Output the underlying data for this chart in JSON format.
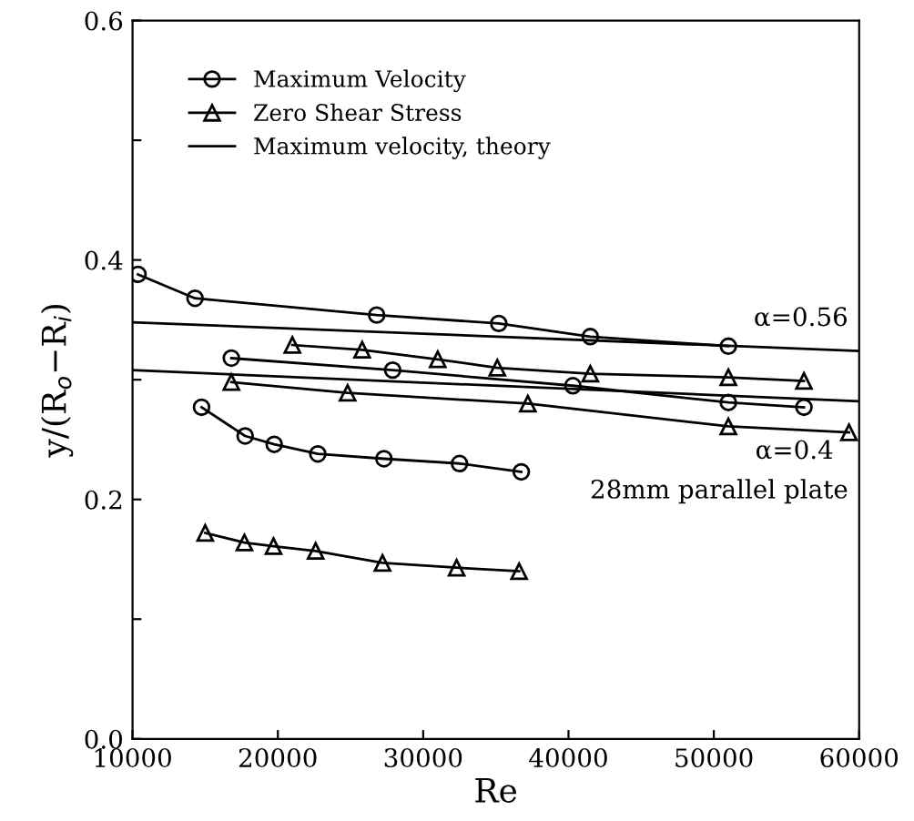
{
  "chart_data": {
    "type": "line",
    "xlabel": "Re",
    "ylabel": "y/(R$_{o}$−R$_{i}$)",
    "xlim": [
      10000,
      60000
    ],
    "ylim": [
      0,
      0.6
    ],
    "xticks": [
      10000,
      20000,
      30000,
      40000,
      50000,
      60000
    ],
    "yticks": [
      {
        "value": 0,
        "label": "0.0"
      },
      {
        "value": 0.1,
        "label": null
      },
      0.2,
      {
        "value": 0.3,
        "label": null
      },
      0.4,
      {
        "value": 0.5,
        "label": null
      },
      0.6
    ],
    "grid": false,
    "legend": "top left",
    "line_style": "solid",
    "series": [
      {
        "name": "Maximum Velocity",
        "marker": "circle",
        "color": "#000000",
        "x": [
          10375,
          14300,
          26800,
          35200,
          41500,
          51000
        ],
        "values": [
          0.388,
          0.368,
          0.354,
          0.347,
          0.336,
          0.328
        ]
      },
      {
        "name": "Zero Shear Stress",
        "marker": "triangle",
        "color": "#000000",
        "x": [
          21000,
          25800,
          31000,
          35100,
          41500,
          51000,
          56200
        ],
        "values": [
          0.329,
          0.325,
          0.317,
          0.31,
          0.305,
          0.302,
          0.299
        ]
      },
      {
        "name": "Maximum velocity, theory",
        "marker": "none",
        "color": "#000000",
        "x": [
          10000,
          60000
        ],
        "values": [
          0.348,
          0.324
        ]
      },
      {
        "marker": "none",
        "color": "#000000",
        "x": [
          10000,
          60000
        ],
        "values": [
          0.308,
          0.282
        ]
      },
      {
        "marker": "circle",
        "color": "#000000",
        "x": [
          16800,
          27900,
          40300,
          51000,
          56200
        ],
        "values": [
          0.318,
          0.308,
          0.295,
          0.281,
          0.277
        ]
      },
      {
        "marker": "triangle",
        "color": "#000000",
        "x": [
          16800,
          24800,
          37200,
          51000,
          59300
        ],
        "values": [
          0.298,
          0.289,
          0.28,
          0.261,
          0.256
        ]
      },
      {
        "marker": "circle",
        "color": "#000000",
        "x": [
          14750,
          17750,
          19750,
          22750,
          27300,
          32500,
          36750
        ],
        "values": [
          0.277,
          0.253,
          0.246,
          0.238,
          0.234,
          0.23,
          0.223
        ]
      },
      {
        "marker": "triangle",
        "color": "#000000",
        "x": [
          15000,
          17700,
          19700,
          22600,
          27200,
          32300,
          36600
        ],
        "values": [
          0.172,
          0.164,
          0.161,
          0.157,
          0.147,
          0.143,
          0.14
        ]
      }
    ],
    "annotations": [
      "α=0.56",
      "α=0.4",
      "28mm parallel plate"
    ]
  }
}
